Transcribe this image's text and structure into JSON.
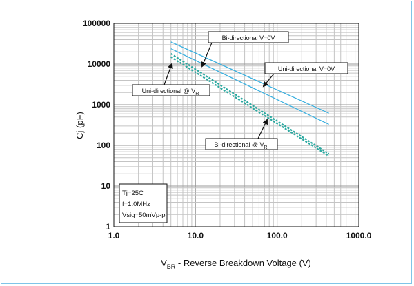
{
  "chart_data": {
    "type": "line",
    "title": "",
    "x_scale": "log",
    "y_scale": "log",
    "xlim": [
      1,
      1000
    ],
    "ylim": [
      1,
      100000
    ],
    "x_ticks": [
      "1.0",
      "10.0",
      "100.0",
      "1000.0"
    ],
    "y_ticks": [
      "1",
      "10",
      "100",
      "1000",
      "10000",
      "100000"
    ],
    "xlabel": {
      "prefix": "V",
      "sub": "BR",
      "rest": " - Reverse Breakdown Voltage (V)"
    },
    "ylabel": "Cj (pF)",
    "grid": true,
    "series": [
      {
        "label": "Bi-directional V=0V",
        "style": "solid",
        "color": "#3ab0e0",
        "points": [
          [
            5,
            35000
          ],
          [
            430,
            620
          ]
        ]
      },
      {
        "label": "Uni-directional V=0V",
        "style": "solid",
        "color": "#3ab0e0",
        "points": [
          [
            5,
            24000
          ],
          [
            430,
            330
          ]
        ]
      },
      {
        "label": "Uni-directional @ VR",
        "style": "dashed",
        "color": "#2aa9a0",
        "points": [
          [
            5,
            18000
          ],
          [
            430,
            62
          ]
        ]
      },
      {
        "label": "Bi-directional @ VR",
        "style": "dashed",
        "color": "#2aa9a0",
        "points": [
          [
            5,
            15000
          ],
          [
            430,
            55
          ]
        ]
      }
    ],
    "annotations": [
      {
        "text": "Bi-directional V=0V"
      },
      {
        "text": "Uni-directional V=0V"
      },
      {
        "text": "Uni-directional @ V",
        "sub": "R"
      },
      {
        "text": "Bi-directional @ V",
        "sub": "R"
      }
    ],
    "conditions": [
      "Tj=25C",
      "f=1.0MHz",
      "Vsig=50mVp-p"
    ]
  }
}
